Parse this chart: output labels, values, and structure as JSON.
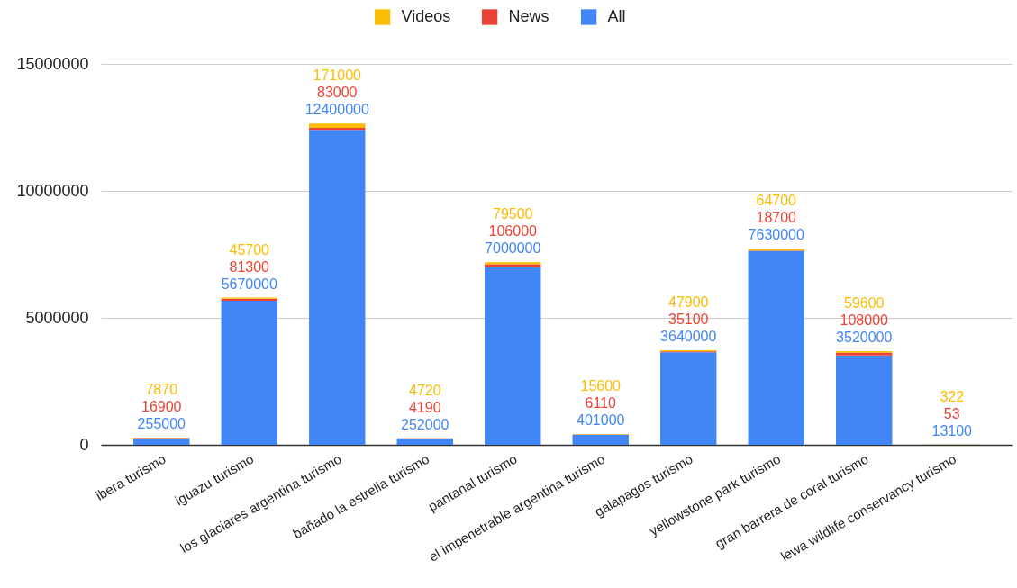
{
  "chart_data": {
    "type": "bar",
    "stacked": true,
    "categories": [
      "ibera turismo",
      "iguazu turismo",
      "los glaciares argentina turismo",
      "bañado la estrella turismo",
      "pantanal turismo",
      "el impenetrable argentina turismo",
      "galapagos turismo",
      "yellowstone park turismo",
      "gran barrera de coral turismo",
      "lewa wildlife conservancy turismo"
    ],
    "series": [
      {
        "name": "All",
        "color": "#4285f4",
        "values": [
          255000,
          5670000,
          12400000,
          252000,
          7000000,
          401000,
          3640000,
          7630000,
          3520000,
          13100
        ]
      },
      {
        "name": "News",
        "color": "#ea4335",
        "values": [
          16900,
          81300,
          83000,
          4190,
          106000,
          6110,
          35100,
          18700,
          108000,
          53
        ]
      },
      {
        "name": "Videos",
        "color": "#fbbc04",
        "values": [
          7870,
          45700,
          171000,
          4720,
          79500,
          15600,
          47900,
          64700,
          59600,
          322
        ]
      }
    ],
    "ylim": [
      0,
      15000000
    ],
    "yticks": [
      0,
      5000000,
      10000000,
      15000000
    ],
    "grid": "y",
    "legend": "top",
    "data_labels": true
  }
}
